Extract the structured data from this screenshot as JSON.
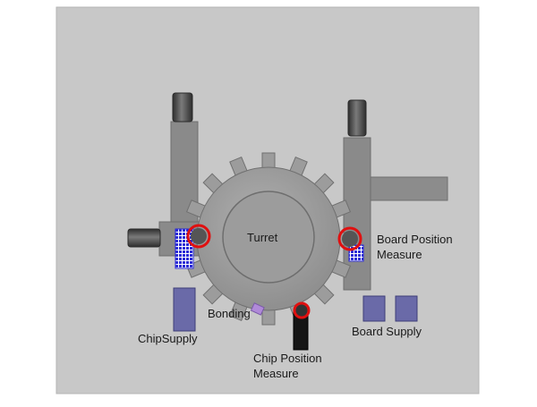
{
  "diagram": {
    "labels": {
      "turret": "Turret",
      "board_position_measure_1": "Board Position",
      "board_position_measure_2": "Measure",
      "bonding": "Bonding",
      "chip_supply": "ChipSupply",
      "chip_position_measure_1": "Chip Position",
      "chip_position_measure_2": "Measure",
      "board_supply": "Board Supply"
    },
    "colors": {
      "background": "#c8c8c8",
      "machine_gray": "#8a8a8a",
      "turret_gray": "#9a9a9a",
      "dark_cylinder": "#4a4a4a",
      "red_ring": "#e01010",
      "part_blue": "#6a6aa8",
      "grid_blue": "#2b2bd6",
      "bonding_chip": "#b08ad8"
    },
    "turret_teeth": 16
  }
}
